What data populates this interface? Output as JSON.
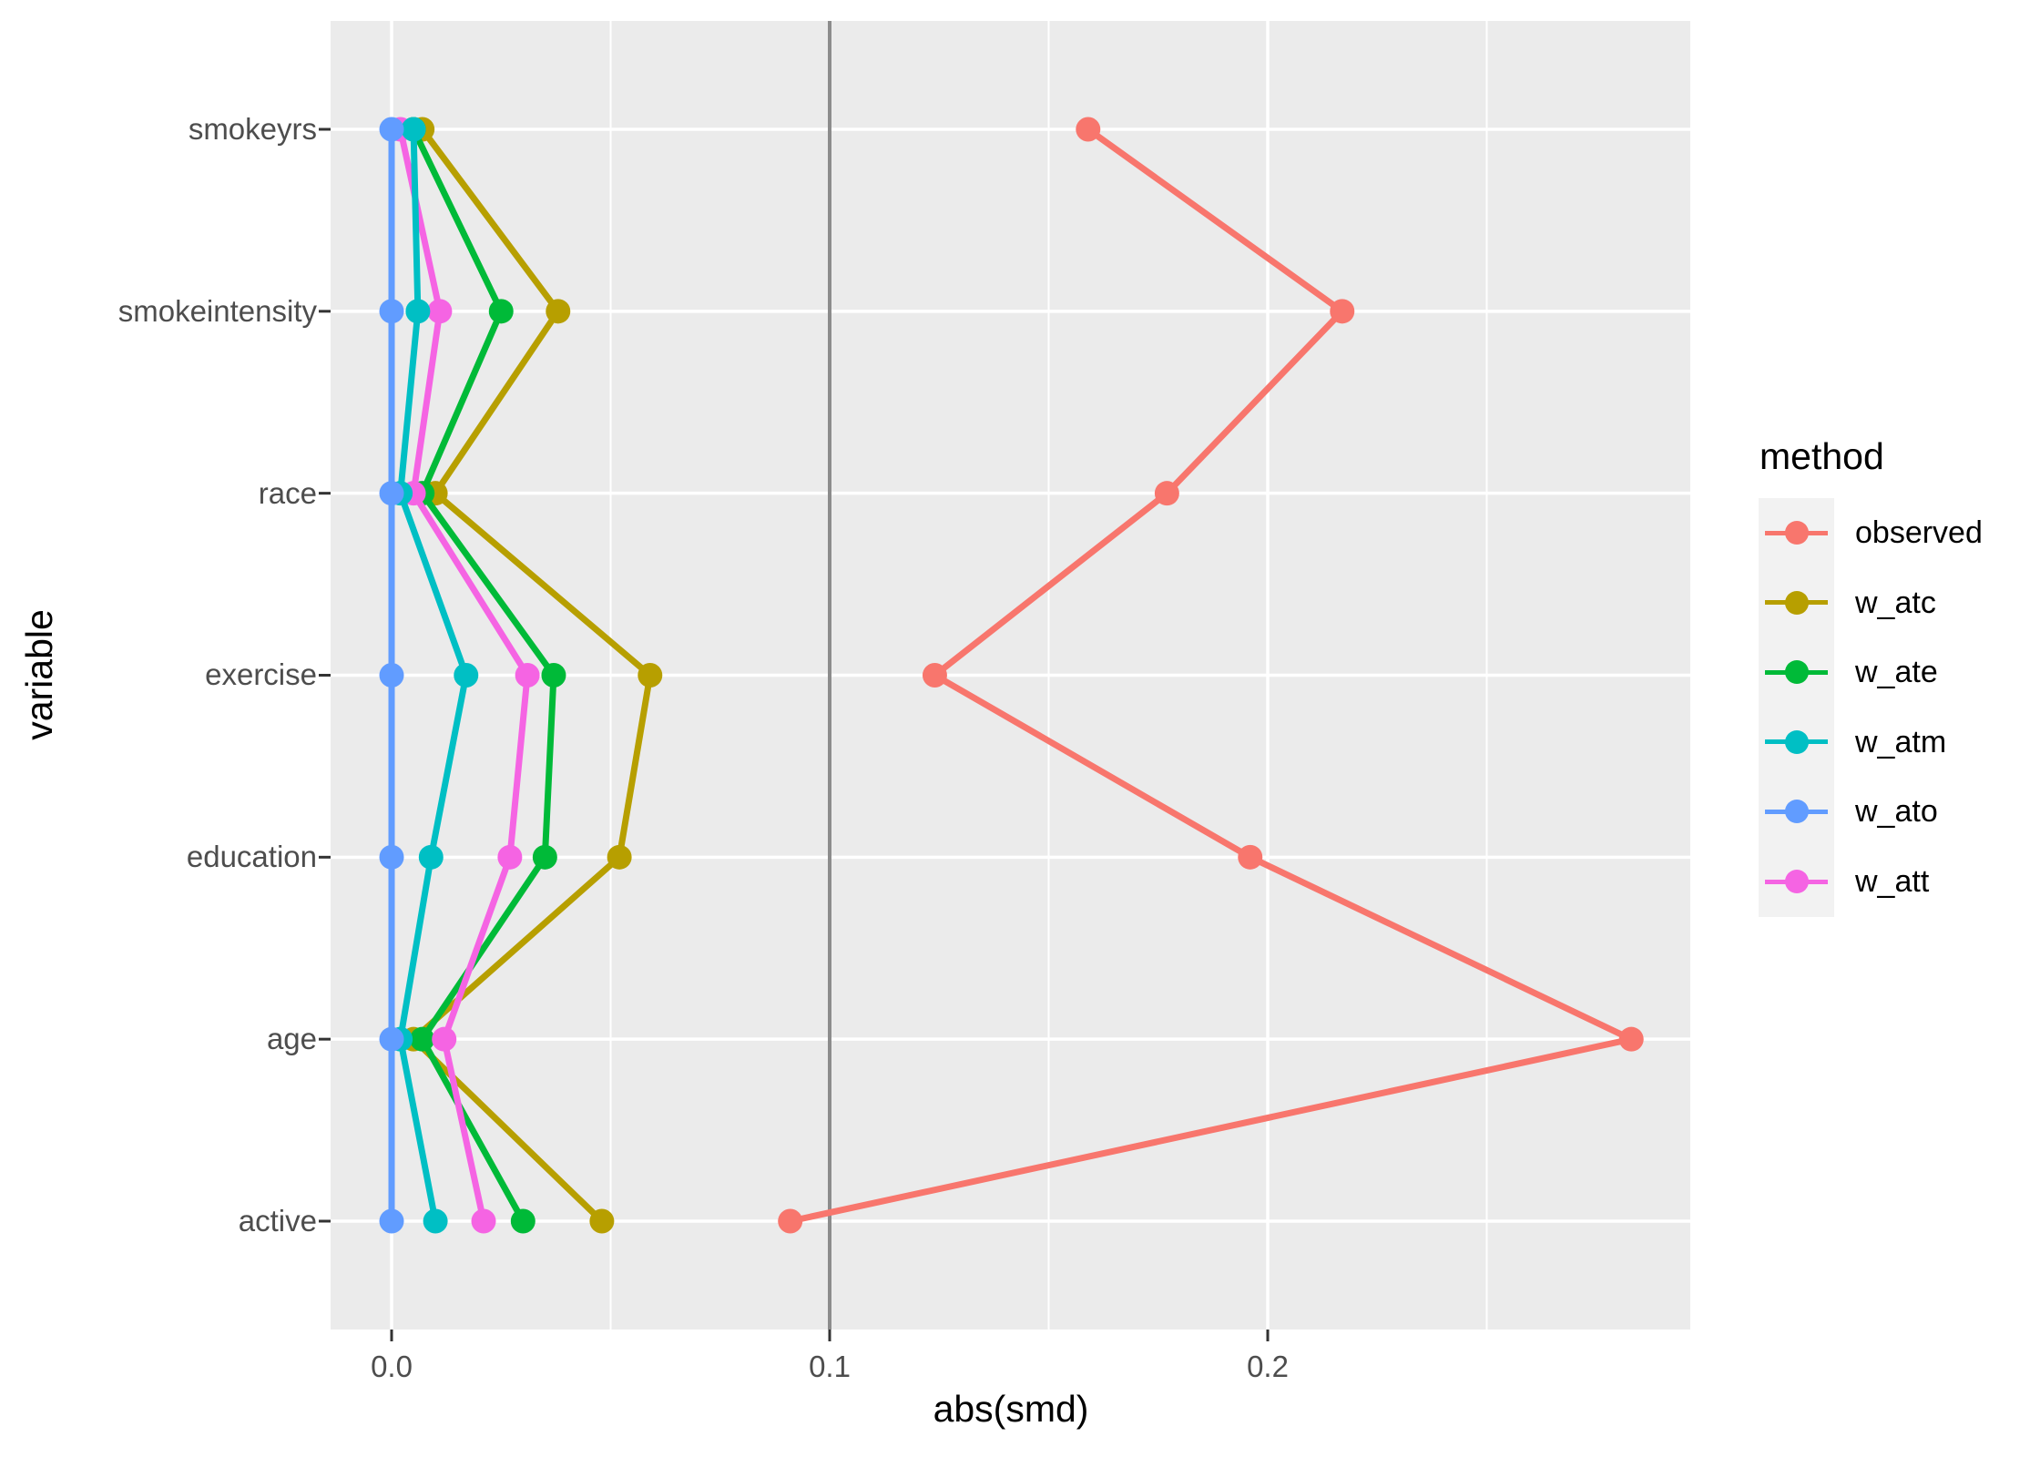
{
  "chart_data": {
    "type": "line",
    "subtype": "dot-line balance plot (love plot), horizontal categories",
    "title": "",
    "xlabel": "abs(smd)",
    "ylabel": "variable",
    "categories": [
      "smokeyrs",
      "smokeintensity",
      "race",
      "exercise",
      "education",
      "age",
      "active"
    ],
    "x_tick_labels": [
      "0.0",
      "0.1",
      "0.2"
    ],
    "x_tick_values": [
      0.0,
      0.1,
      0.2
    ],
    "x_minor_tick_values": [
      0.05,
      0.15,
      0.25
    ],
    "xlim": [
      -0.014,
      0.297
    ],
    "reference_line_x": 0.1,
    "grid": true,
    "legend_position": "right",
    "legend_title": "method",
    "series": [
      {
        "name": "observed",
        "color": "#F8766D",
        "values": [
          0.159,
          0.217,
          0.177,
          0.124,
          0.196,
          0.283,
          0.091
        ]
      },
      {
        "name": "w_atc",
        "color": "#B79F00",
        "values": [
          0.007,
          0.038,
          0.01,
          0.059,
          0.052,
          0.005,
          0.048
        ]
      },
      {
        "name": "w_ate",
        "color": "#00BA38",
        "values": [
          0.005,
          0.025,
          0.007,
          0.037,
          0.035,
          0.007,
          0.03
        ]
      },
      {
        "name": "w_atm",
        "color": "#00BFC4",
        "values": [
          0.005,
          0.006,
          0.002,
          0.017,
          0.009,
          0.002,
          0.01
        ]
      },
      {
        "name": "w_ato",
        "color": "#619CFF",
        "values": [
          0.0,
          0.0,
          0.0,
          0.0,
          0.0,
          0.0,
          0.0
        ]
      },
      {
        "name": "w_att",
        "color": "#F564E3",
        "values": [
          0.002,
          0.011,
          0.005,
          0.031,
          0.027,
          0.012,
          0.021
        ]
      }
    ]
  },
  "colors": {
    "panel_background": "#EBEBEB",
    "grid_line": "#FFFFFF",
    "reference_line": "#8C8C8C",
    "tick_mark": "#333333",
    "axis_text": "#4D4D4D",
    "title_text": "#000000",
    "legend_key_background": "#F2F2F2"
  }
}
